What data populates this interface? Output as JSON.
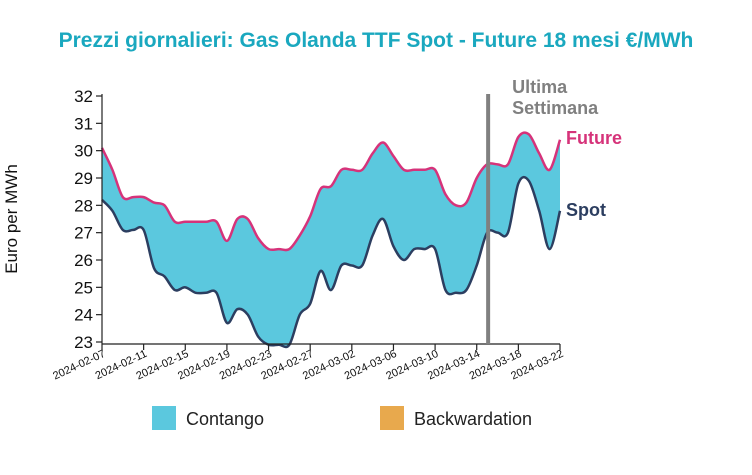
{
  "chart_data": {
    "type": "area",
    "title": "Prezzi giornalieri: Gas Olanda TTF Spot - Future 18 mesi €/MWh",
    "xlabel": "",
    "ylabel": "Euro per MWh",
    "ylim": [
      23,
      32
    ],
    "yticks": [
      23,
      24,
      25,
      26,
      27,
      28,
      29,
      30,
      31,
      32
    ],
    "xlim": [
      "2024-02-07",
      "2024-03-22"
    ],
    "xticks": [
      "2024-02-07",
      "2024-02-11",
      "2024-02-15",
      "2024-02-19",
      "2024-02-23",
      "2024-02-27",
      "2024-03-02",
      "2024-03-06",
      "2024-03-10",
      "2024-03-14",
      "2024-03-18",
      "2024-03-22"
    ],
    "grid": false,
    "legend_position": "bottom",
    "series": [
      {
        "name": "Future",
        "color": "#d6337a",
        "x": [
          "2024-02-07",
          "2024-02-08",
          "2024-02-09",
          "2024-02-10",
          "2024-02-11",
          "2024-02-12",
          "2024-02-13",
          "2024-02-14",
          "2024-02-15",
          "2024-02-16",
          "2024-02-17",
          "2024-02-18",
          "2024-02-19",
          "2024-02-20",
          "2024-02-21",
          "2024-02-22",
          "2024-02-23",
          "2024-02-24",
          "2024-02-25",
          "2024-02-26",
          "2024-02-27",
          "2024-02-28",
          "2024-02-29",
          "2024-03-01",
          "2024-03-02",
          "2024-03-03",
          "2024-03-04",
          "2024-03-05",
          "2024-03-06",
          "2024-03-07",
          "2024-03-08",
          "2024-03-09",
          "2024-03-10",
          "2024-03-11",
          "2024-03-12",
          "2024-03-13",
          "2024-03-14",
          "2024-03-15",
          "2024-03-16",
          "2024-03-17",
          "2024-03-18",
          "2024-03-19",
          "2024-03-20",
          "2024-03-21",
          "2024-03-22"
        ],
        "values": [
          30.1,
          29.3,
          28.3,
          28.3,
          28.3,
          28.1,
          28.0,
          27.4,
          27.4,
          27.4,
          27.4,
          27.4,
          26.7,
          27.5,
          27.5,
          26.8,
          26.4,
          26.4,
          26.4,
          26.9,
          27.6,
          28.6,
          28.7,
          29.3,
          29.3,
          29.3,
          29.9,
          30.3,
          29.8,
          29.3,
          29.3,
          29.3,
          29.3,
          28.4,
          28.0,
          28.1,
          29.0,
          29.5,
          29.5,
          29.5,
          30.5,
          30.6,
          29.9,
          29.3,
          30.4
        ]
      },
      {
        "name": "Spot",
        "color": "#2c3e60",
        "x": [
          "2024-02-07",
          "2024-02-08",
          "2024-02-09",
          "2024-02-10",
          "2024-02-11",
          "2024-02-12",
          "2024-02-13",
          "2024-02-14",
          "2024-02-15",
          "2024-02-16",
          "2024-02-17",
          "2024-02-18",
          "2024-02-19",
          "2024-02-20",
          "2024-02-21",
          "2024-02-22",
          "2024-02-23",
          "2024-02-24",
          "2024-02-25",
          "2024-02-26",
          "2024-02-27",
          "2024-02-28",
          "2024-02-29",
          "2024-03-01",
          "2024-03-02",
          "2024-03-03",
          "2024-03-04",
          "2024-03-05",
          "2024-03-06",
          "2024-03-07",
          "2024-03-08",
          "2024-03-09",
          "2024-03-10",
          "2024-03-11",
          "2024-03-12",
          "2024-03-13",
          "2024-03-14",
          "2024-03-15",
          "2024-03-16",
          "2024-03-17",
          "2024-03-18",
          "2024-03-19",
          "2024-03-20",
          "2024-03-21",
          "2024-03-22"
        ],
        "values": [
          28.2,
          27.8,
          27.1,
          27.1,
          27.1,
          25.7,
          25.4,
          24.9,
          25.0,
          24.8,
          24.8,
          24.8,
          23.7,
          24.2,
          24.0,
          23.2,
          22.9,
          22.9,
          22.9,
          24.0,
          24.4,
          25.6,
          24.9,
          25.8,
          25.8,
          25.8,
          26.9,
          27.5,
          26.5,
          26.0,
          26.4,
          26.4,
          26.4,
          24.9,
          24.8,
          24.9,
          25.8,
          27.0,
          27.0,
          27.0,
          28.8,
          28.9,
          27.8,
          26.4,
          27.8
        ]
      }
    ],
    "fills": [
      {
        "name": "Contango",
        "color": "#5bc8de",
        "condition": "Future above Spot"
      },
      {
        "name": "Backwardation",
        "color": "#e8a94d",
        "condition": "Spot above Future"
      }
    ],
    "annotations": [
      {
        "text": "Ultima Settimana",
        "type": "vertical-line",
        "x": "2024-03-15",
        "color": "#808080"
      }
    ],
    "colors": {
      "title": "#1aa8bf",
      "axis": "#222222"
    }
  }
}
